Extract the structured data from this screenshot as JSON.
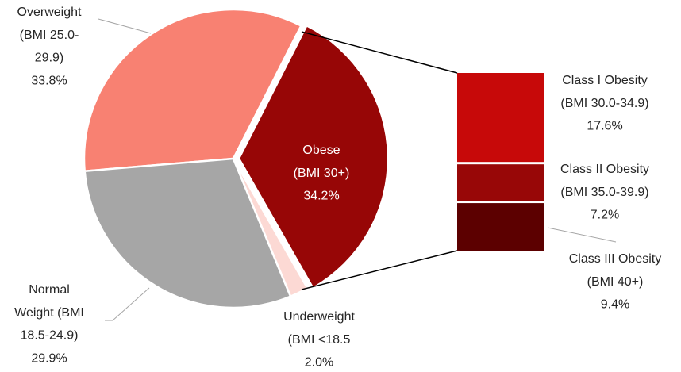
{
  "chart_data": {
    "type": "pie-of-bar",
    "categories": [
      [
        "Obese",
        "(BMI 30+)"
      ],
      [
        "Underweight",
        "(BMI <18.5"
      ],
      [
        "Normal",
        "Weight (BMI",
        "18.5-24.9)"
      ],
      [
        "Overweight",
        "(BMI 25.0-",
        "29.9)"
      ]
    ],
    "values": [
      34.2,
      2.0,
      29.9,
      33.8
    ],
    "value_labels": [
      "34.2%",
      "2.0%",
      "29.9%",
      "33.8%"
    ],
    "colors": [
      "#970606",
      "#fcd9d4",
      "#a6a6a6",
      "#f88172"
    ],
    "breakdown": {
      "categories": [
        [
          "Class I Obesity",
          "(BMI 30.0-34.9)"
        ],
        [
          "Class II Obesity",
          "(BMI 35.0-39.9)"
        ],
        [
          "Class III Obesity",
          "(BMI 40+)"
        ]
      ],
      "values": [
        17.6,
        7.2,
        9.4
      ],
      "value_labels": [
        "17.6%",
        "7.2%",
        "9.4%"
      ],
      "colors": [
        "#c70909",
        "#980707",
        "#5c0000"
      ]
    }
  }
}
